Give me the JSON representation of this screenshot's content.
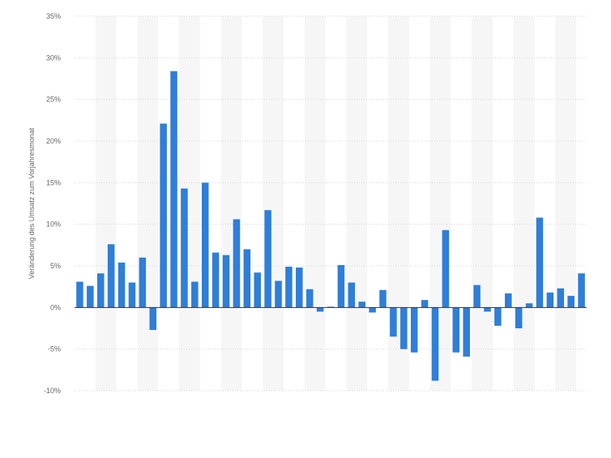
{
  "chart_data": {
    "type": "bar",
    "title": "",
    "xlabel": "",
    "ylabel": "Veränderung des Umsatz zum Vorjahresmonat",
    "ylim": [
      -10,
      35
    ],
    "yticks": [
      35,
      30,
      25,
      20,
      15,
      10,
      5,
      0,
      -5,
      -10
    ],
    "ytick_labels": [
      "35%",
      "30%",
      "25%",
      "20%",
      "15%",
      "10%",
      "5%",
      "0%",
      "-5%",
      "-10%"
    ],
    "grid": true,
    "legend": "none",
    "colors": {
      "bar": "#2f7ed8",
      "grid": "#d6d6d6",
      "band": "#f6f6f6",
      "zero_line": "#333333",
      "tick_text": "#666666"
    },
    "values": [
      3.1,
      2.6,
      4.1,
      7.6,
      5.4,
      3.0,
      6.0,
      -2.7,
      22.1,
      28.4,
      14.3,
      3.1,
      15.0,
      6.6,
      6.3,
      10.6,
      7.0,
      4.2,
      11.7,
      3.2,
      4.9,
      4.8,
      2.2,
      -0.5,
      0.1,
      5.1,
      3.0,
      0.7,
      -0.6,
      2.1,
      -3.5,
      -5.0,
      -5.4,
      0.9,
      -8.8,
      9.3,
      -5.4,
      -5.9,
      2.7,
      -0.5,
      -2.2,
      1.7,
      -2.5,
      0.5,
      10.8,
      1.8,
      2.3,
      1.4,
      4.1
    ]
  }
}
